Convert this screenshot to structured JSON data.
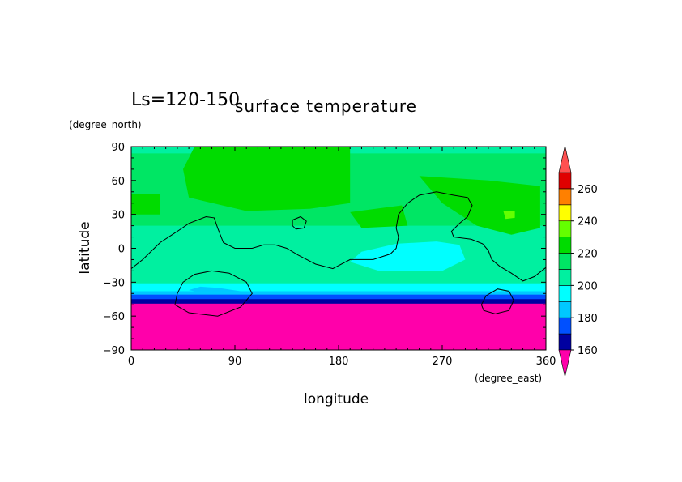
{
  "chart_data": {
    "type": "heatmap",
    "title": "surface temperature",
    "subtitle": "Ls=120-150",
    "xlabel": "longitude",
    "ylabel": "latitude",
    "x_units": "(degree_east)",
    "y_units": "(degree_north)",
    "xlim": [
      0,
      360
    ],
    "ylim": [
      -90,
      90
    ],
    "x_ticks": [
      "0",
      "90",
      "180",
      "270",
      "360"
    ],
    "y_ticks": [
      "90",
      "60",
      "30",
      "0",
      "−30",
      "−60",
      "−90"
    ],
    "colorbar": {
      "labels": [
        "160",
        "180",
        "200",
        "220",
        "240",
        "260"
      ],
      "levels": [
        150,
        160,
        170,
        180,
        190,
        200,
        210,
        220,
        230,
        240,
        250,
        260,
        270
      ],
      "colors": [
        "#ff00aa",
        "#0000a0",
        "#0050ff",
        "#00c8ff",
        "#00ffff",
        "#00f0a0",
        "#00e664",
        "#00dc00",
        "#64ff00",
        "#ffff00",
        "#ff8000",
        "#e00000",
        "#ff5050"
      ]
    },
    "lat_bands": [
      {
        "lat_top": 90,
        "lat_bottom": 84,
        "value": 205
      },
      {
        "lat_top": 84,
        "lat_bottom": 75,
        "value": 215
      },
      {
        "lat_top": 75,
        "lat_bottom": 20,
        "value": 215
      },
      {
        "lat_top": 20,
        "lat_bottom": -20,
        "value": 205
      },
      {
        "lat_top": -20,
        "lat_bottom": -31,
        "value": 205
      },
      {
        "lat_top": -31,
        "lat_bottom": -38,
        "value": 195
      },
      {
        "lat_top": -38,
        "lat_bottom": -41,
        "value": 185
      },
      {
        "lat_top": -41,
        "lat_bottom": -45,
        "value": 175
      },
      {
        "lat_top": -45,
        "lat_bottom": -49,
        "value": 165
      },
      {
        "lat_top": -49,
        "lat_bottom": -90,
        "value": 155
      }
    ],
    "warm_regions": [
      {
        "value": 225,
        "lon": [
          [
            45,
            70
          ],
          [
            60,
            100
          ],
          [
            110,
            125
          ],
          [
            160,
            160
          ],
          [
            190,
            125
          ],
          [
            190,
            40
          ],
          [
            155,
            35
          ],
          [
            100,
            33
          ],
          [
            50,
            45
          ]
        ]
      },
      {
        "value": 225,
        "lon": [
          [
            0,
            48
          ],
          [
            25,
            48
          ],
          [
            25,
            30
          ],
          [
            0,
            30
          ]
        ]
      },
      {
        "value": 225,
        "lon": [
          [
            250,
            64
          ],
          [
            310,
            60
          ],
          [
            355,
            55
          ],
          [
            355,
            18
          ],
          [
            330,
            12
          ],
          [
            300,
            20
          ],
          [
            270,
            40
          ]
        ]
      },
      {
        "value": 225,
        "lon": [
          [
            190,
            32
          ],
          [
            235,
            38
          ],
          [
            240,
            20
          ],
          [
            200,
            18
          ]
        ]
      },
      {
        "value": 235,
        "lon": [
          [
            323,
            33
          ],
          [
            333,
            33
          ],
          [
            333,
            27
          ],
          [
            325,
            26
          ]
        ]
      }
    ],
    "cool_regions": [
      {
        "value": 195,
        "lon": [
          [
            190,
            -12
          ],
          [
            200,
            -3
          ],
          [
            230,
            4
          ],
          [
            265,
            6
          ],
          [
            285,
            3
          ],
          [
            290,
            -10
          ],
          [
            270,
            -20
          ],
          [
            215,
            -20
          ]
        ]
      },
      {
        "value": 185,
        "lon": [
          [
            50,
            -37
          ],
          [
            60,
            -34
          ],
          [
            75,
            -35
          ],
          [
            95,
            -38
          ],
          [
            60,
            -39
          ]
        ]
      }
    ],
    "contours": [
      {
        "name": "",
        "points": [
          [
            0,
            -18
          ],
          [
            10,
            -10
          ],
          [
            25,
            5
          ],
          [
            40,
            15
          ],
          [
            50,
            22
          ],
          [
            65,
            28
          ],
          [
            72,
            27
          ],
          [
            75,
            18
          ],
          [
            80,
            5
          ],
          [
            90,
            0
          ],
          [
            105,
            0
          ],
          [
            115,
            3
          ],
          [
            125,
            3
          ],
          [
            135,
            0
          ],
          [
            145,
            -6
          ],
          [
            160,
            -14
          ],
          [
            175,
            -18
          ],
          [
            190,
            -10
          ],
          [
            210,
            -10
          ],
          [
            225,
            -5
          ],
          [
            230,
            0
          ],
          [
            232,
            10
          ],
          [
            230,
            18
          ],
          [
            232,
            30
          ],
          [
            240,
            40
          ],
          [
            250,
            47
          ],
          [
            265,
            50
          ],
          [
            280,
            47
          ],
          [
            292,
            45
          ],
          [
            296,
            38
          ],
          [
            292,
            28
          ],
          [
            285,
            22
          ],
          [
            278,
            15
          ],
          [
            280,
            10
          ],
          [
            295,
            8
          ],
          [
            305,
            4
          ],
          [
            310,
            -2
          ],
          [
            313,
            -10
          ],
          [
            320,
            -16
          ],
          [
            330,
            -22
          ],
          [
            340,
            -29
          ],
          [
            350,
            -25
          ],
          [
            360,
            -17
          ]
        ]
      },
      {
        "name": "",
        "points": [
          [
            140,
            25
          ],
          [
            147,
            28
          ],
          [
            152,
            24
          ],
          [
            150,
            18
          ],
          [
            143,
            17
          ],
          [
            140,
            20
          ],
          [
            140,
            25
          ]
        ]
      },
      {
        "name": "",
        "points": [
          [
            40,
            -40
          ],
          [
            45,
            -30
          ],
          [
            55,
            -23
          ],
          [
            70,
            -20
          ],
          [
            85,
            -22
          ],
          [
            100,
            -30
          ],
          [
            105,
            -40
          ],
          [
            95,
            -52
          ],
          [
            75,
            -60
          ],
          [
            50,
            -57
          ],
          [
            38,
            -50
          ],
          [
            40,
            -40
          ]
        ]
      },
      {
        "name": "",
        "points": [
          [
            304,
            -50
          ],
          [
            308,
            -42
          ],
          [
            318,
            -36
          ],
          [
            328,
            -38
          ],
          [
            332,
            -46
          ],
          [
            328,
            -55
          ],
          [
            316,
            -58
          ],
          [
            306,
            -55
          ],
          [
            304,
            -50
          ]
        ]
      }
    ]
  }
}
